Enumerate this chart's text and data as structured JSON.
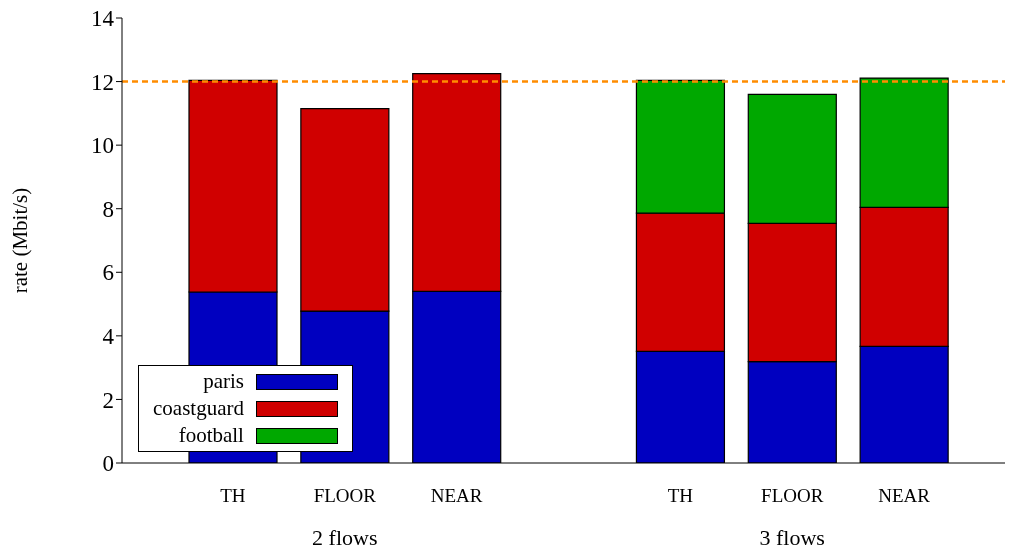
{
  "chart_data": {
    "type": "bar",
    "stacked": true,
    "ylabel": "rate (Mbit/s)",
    "categories": [
      "TH",
      "FLOOR",
      "NEAR",
      null,
      "TH",
      "FLOOR",
      "NEAR"
    ],
    "series": [
      {
        "name": "paris",
        "color": "#0000c0",
        "values": [
          5.38,
          4.78,
          5.4,
          null,
          3.51,
          3.19,
          3.67
        ]
      },
      {
        "name": "coastguard",
        "color": "#d00000",
        "values": [
          6.66,
          6.37,
          6.85,
          null,
          4.35,
          4.35,
          4.37
        ]
      },
      {
        "name": "football",
        "color": "#00a800",
        "values": [
          null,
          null,
          null,
          null,
          4.18,
          4.06,
          4.07
        ]
      }
    ],
    "ylim": [
      0,
      14
    ],
    "yticks": [
      0,
      2,
      4,
      6,
      8,
      10,
      12,
      14
    ],
    "ref_lines": [
      {
        "axis": "y",
        "value": 12,
        "color": "#ff8c00",
        "line_style": "dashed"
      }
    ],
    "annotations": [
      "2 flows",
      "3 flows"
    ],
    "legend": "bottom left",
    "grid": false
  }
}
